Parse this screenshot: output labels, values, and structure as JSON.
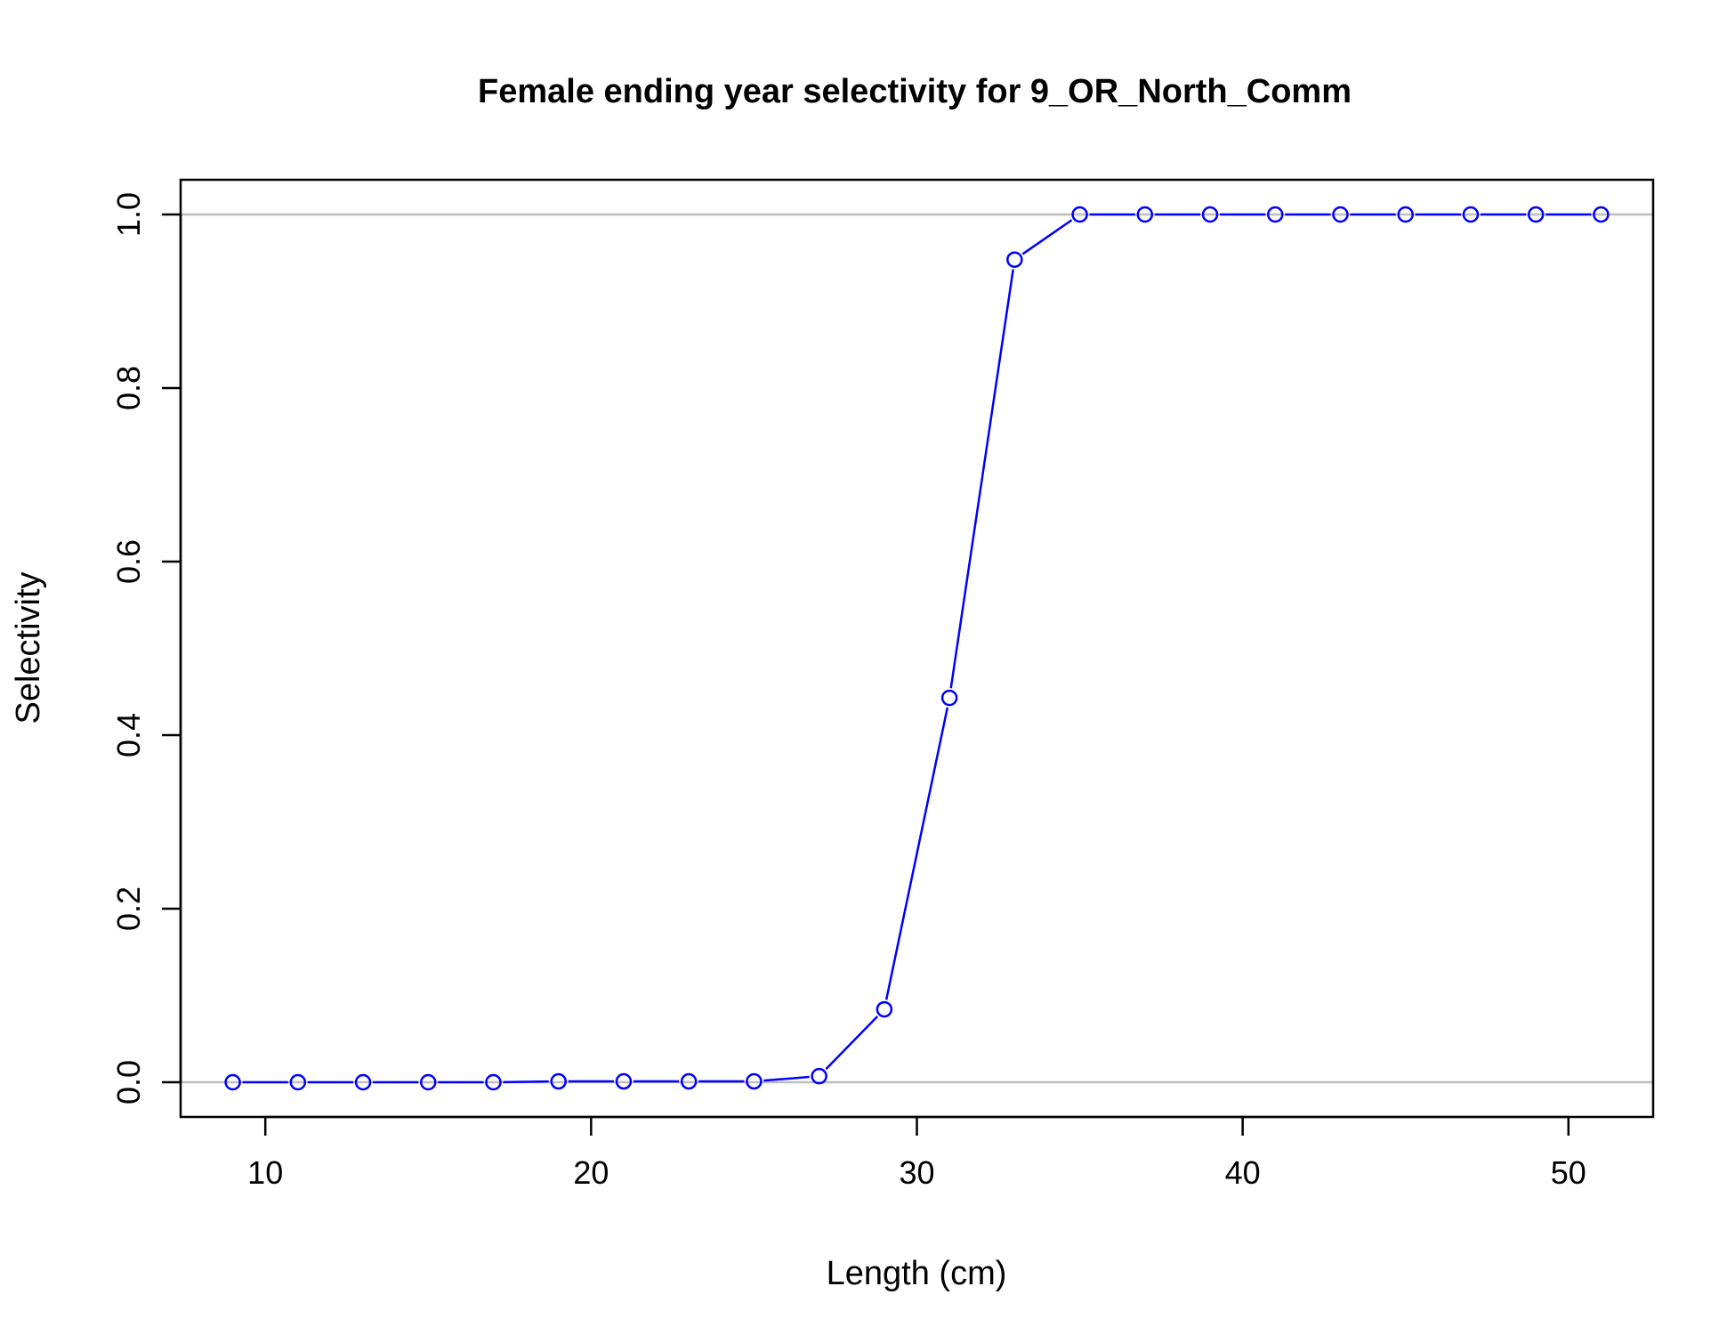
{
  "chart_data": {
    "type": "line",
    "title": "Female ending year selectivity for 9_OR_North_Comm",
    "xlabel": "Length (cm)",
    "ylabel": "Selectivity",
    "xlim": [
      7.4,
      52.6
    ],
    "ylim": [
      -0.04,
      1.04
    ],
    "xticks": [
      10,
      20,
      30,
      40,
      50
    ],
    "yticks": [
      0.0,
      0.2,
      0.4,
      0.6,
      0.8,
      1.0
    ],
    "xtick_labels": [
      "10",
      "20",
      "30",
      "40",
      "50"
    ],
    "ytick_labels": [
      "0.0",
      "0.2",
      "0.4",
      "0.6",
      "0.8",
      "1.0"
    ],
    "reference_lines_y": [
      0,
      1
    ],
    "grid": false,
    "series": [
      {
        "color": "#0000ff",
        "marker": "open-circle",
        "x": [
          9,
          11,
          13,
          15,
          17,
          19,
          21,
          23,
          25,
          27,
          29,
          31,
          33,
          35,
          37,
          39,
          41,
          43,
          45,
          47,
          49,
          51
        ],
        "y": [
          0.0,
          0.0,
          0.0,
          0.0,
          0.0,
          0.001,
          0.001,
          0.001,
          0.001,
          0.007,
          0.084,
          0.443,
          0.948,
          1.0,
          1.0,
          1.0,
          1.0,
          1.0,
          1.0,
          1.0,
          1.0,
          1.0
        ]
      }
    ]
  }
}
